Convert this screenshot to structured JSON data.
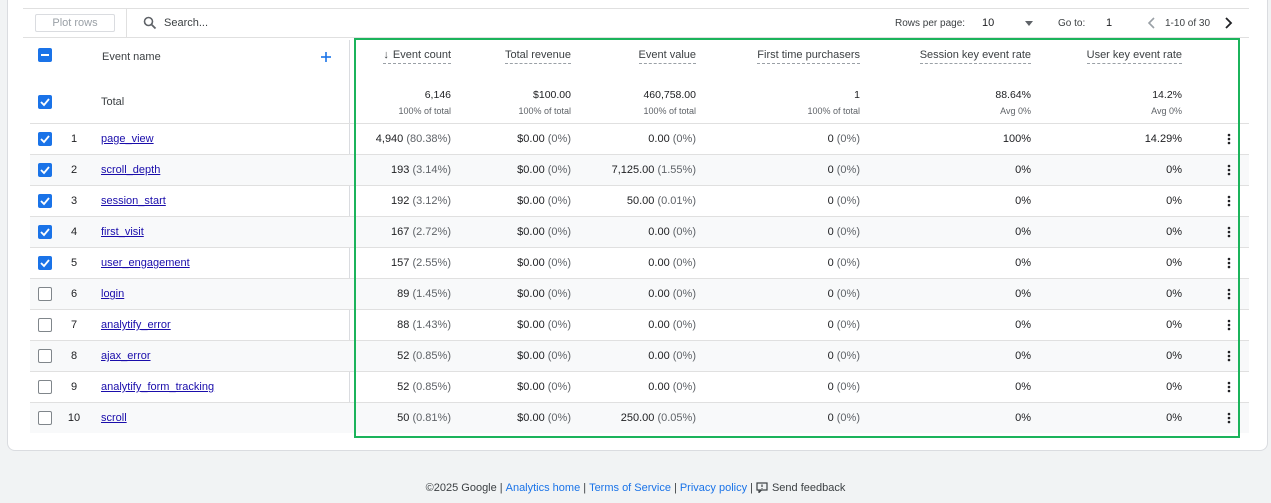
{
  "toolbar": {
    "plot_rows_label": "Plot rows",
    "search_placeholder": "Search...",
    "rows_per_page_label": "Rows per page:",
    "rows_per_page_value": "10",
    "goto_label": "Go to:",
    "goto_value": "1",
    "page_range": "1-10 of 30"
  },
  "table": {
    "event_name_header": "Event name",
    "total_label": "Total",
    "headers": [
      "Event count",
      "Total revenue",
      "Event value",
      "First time purchasers",
      "Session key event rate",
      "User key event rate"
    ],
    "totals": [
      {
        "value": "6,146",
        "sub": "100% of total"
      },
      {
        "value": "$100.00",
        "sub": "100% of total"
      },
      {
        "value": "460,758.00",
        "sub": "100% of total"
      },
      {
        "value": "1",
        "sub": "100% of total"
      },
      {
        "value": "88.64%",
        "sub": "Avg 0%"
      },
      {
        "value": "14.2%",
        "sub": "Avg 0%"
      }
    ],
    "rows": [
      {
        "idx": "1",
        "name": "page_view",
        "checked": true,
        "cells": [
          [
            "4,940",
            "(80.38%)"
          ],
          [
            "$0.00",
            "(0%)"
          ],
          [
            "0.00",
            "(0%)"
          ],
          [
            "0",
            "(0%)"
          ],
          [
            "100%",
            ""
          ],
          [
            "14.29%",
            ""
          ]
        ]
      },
      {
        "idx": "2",
        "name": "scroll_depth",
        "checked": true,
        "cells": [
          [
            "193",
            "(3.14%)"
          ],
          [
            "$0.00",
            "(0%)"
          ],
          [
            "7,125.00",
            "(1.55%)"
          ],
          [
            "0",
            "(0%)"
          ],
          [
            "0%",
            ""
          ],
          [
            "0%",
            ""
          ]
        ]
      },
      {
        "idx": "3",
        "name": "session_start",
        "checked": true,
        "cells": [
          [
            "192",
            "(3.12%)"
          ],
          [
            "$0.00",
            "(0%)"
          ],
          [
            "50.00",
            "(0.01%)"
          ],
          [
            "0",
            "(0%)"
          ],
          [
            "0%",
            ""
          ],
          [
            "0%",
            ""
          ]
        ]
      },
      {
        "idx": "4",
        "name": "first_visit",
        "checked": true,
        "cells": [
          [
            "167",
            "(2.72%)"
          ],
          [
            "$0.00",
            "(0%)"
          ],
          [
            "0.00",
            "(0%)"
          ],
          [
            "0",
            "(0%)"
          ],
          [
            "0%",
            ""
          ],
          [
            "0%",
            ""
          ]
        ]
      },
      {
        "idx": "5",
        "name": "user_engagement",
        "checked": true,
        "cells": [
          [
            "157",
            "(2.55%)"
          ],
          [
            "$0.00",
            "(0%)"
          ],
          [
            "0.00",
            "(0%)"
          ],
          [
            "0",
            "(0%)"
          ],
          [
            "0%",
            ""
          ],
          [
            "0%",
            ""
          ]
        ]
      },
      {
        "idx": "6",
        "name": "login",
        "checked": false,
        "cells": [
          [
            "89",
            "(1.45%)"
          ],
          [
            "$0.00",
            "(0%)"
          ],
          [
            "0.00",
            "(0%)"
          ],
          [
            "0",
            "(0%)"
          ],
          [
            "0%",
            ""
          ],
          [
            "0%",
            ""
          ]
        ]
      },
      {
        "idx": "7",
        "name": "analytify_error",
        "checked": false,
        "cells": [
          [
            "88",
            "(1.43%)"
          ],
          [
            "$0.00",
            "(0%)"
          ],
          [
            "0.00",
            "(0%)"
          ],
          [
            "0",
            "(0%)"
          ],
          [
            "0%",
            ""
          ],
          [
            "0%",
            ""
          ]
        ]
      },
      {
        "idx": "8",
        "name": "ajax_error",
        "checked": false,
        "cells": [
          [
            "52",
            "(0.85%)"
          ],
          [
            "$0.00",
            "(0%)"
          ],
          [
            "0.00",
            "(0%)"
          ],
          [
            "0",
            "(0%)"
          ],
          [
            "0%",
            ""
          ],
          [
            "0%",
            ""
          ]
        ]
      },
      {
        "idx": "9",
        "name": "analytify_form_tracking",
        "checked": false,
        "cells": [
          [
            "52",
            "(0.85%)"
          ],
          [
            "$0.00",
            "(0%)"
          ],
          [
            "0.00",
            "(0%)"
          ],
          [
            "0",
            "(0%)"
          ],
          [
            "0%",
            ""
          ],
          [
            "0%",
            ""
          ]
        ]
      },
      {
        "idx": "10",
        "name": "scroll",
        "checked": false,
        "cells": [
          [
            "50",
            "(0.81%)"
          ],
          [
            "$0.00",
            "(0%)"
          ],
          [
            "250.00",
            "(0.05%)"
          ],
          [
            "0",
            "(0%)"
          ],
          [
            "0%",
            ""
          ],
          [
            "0%",
            ""
          ]
        ]
      }
    ]
  },
  "footer": {
    "copyright": "©2025 Google",
    "links": [
      "Analytics home",
      "Terms of Service",
      "Privacy policy"
    ],
    "feedback": "Send feedback"
  },
  "colors": {
    "accent": "#1a73e8",
    "highlight_border": "#1bb35b",
    "link": "#1a0dab"
  }
}
